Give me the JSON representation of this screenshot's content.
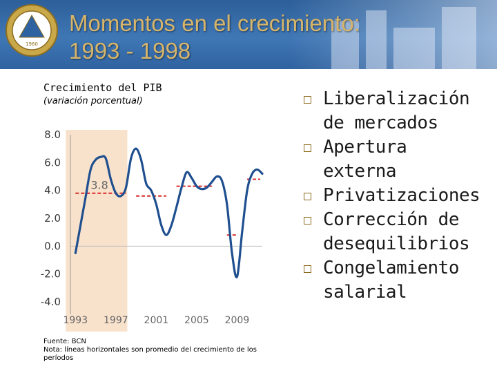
{
  "header": {
    "title_line1": "Momentos en el crecimiento:",
    "title_line2": "1993 - 1998",
    "seal_text": "1960"
  },
  "chart_title": "Crecimiento del PIB",
  "chart_subtitle": "(variación porcentual)",
  "chart_data": {
    "type": "line",
    "title": "Crecimiento del PIB",
    "subtitle": "(variación porcentual)",
    "ylim": [
      -4.0,
      8.0
    ],
    "xlim": [
      1992.5,
      2011.5
    ],
    "y_ticks": [
      "8.0",
      "6.0",
      "4.0",
      "2.0",
      "0.0",
      "-2.0",
      "-4.0"
    ],
    "y_tick_values": [
      8,
      6,
      4,
      2,
      0,
      -2,
      -4
    ],
    "x_ticks": [
      "1993",
      "1997",
      "2001",
      "2005",
      "2009"
    ],
    "x_tick_values": [
      1993,
      1997,
      2001,
      2005,
      2009
    ],
    "highlight_range": [
      1993,
      1998
    ],
    "highlight_color": "#f8e2cc",
    "series": [
      {
        "color": "#1f4f8f",
        "x": [
          1993,
          1993.5,
          1994,
          1994.5,
          1995,
          1995.5,
          1996,
          1996.5,
          1997,
          1997.5,
          1998,
          1998.5,
          1999,
          1999.5,
          2000,
          2000.5,
          2001,
          2001.5,
          2002,
          2002.5,
          2003,
          2003.5,
          2004,
          2004.5,
          2005,
          2005.5,
          2006,
          2006.5,
          2007,
          2007.5,
          2008,
          2008.5,
          2009,
          2009.5,
          2010,
          2010.5,
          2011,
          2011.5
        ],
        "values": [
          -0.5,
          1.5,
          3.5,
          5.5,
          6.2,
          6.4,
          6.3,
          4.8,
          3.8,
          3.6,
          4.2,
          6.3,
          7.0,
          6.2,
          4.5,
          4.0,
          3.0,
          1.5,
          0.8,
          1.5,
          2.8,
          4.2,
          5.3,
          4.9,
          4.3,
          4.1,
          4.2,
          4.6,
          5.0,
          4.7,
          3.0,
          -0.5,
          -2.2,
          1.0,
          4.0,
          5.2,
          5.5,
          5.2
        ]
      }
    ],
    "averages": [
      {
        "x_start": 1993,
        "x_end": 1998,
        "value": 3.8,
        "label": "3.8"
      },
      {
        "x_start": 1999,
        "x_end": 2002,
        "value": 3.6
      },
      {
        "x_start": 2003,
        "x_end": 2006.5,
        "value": 4.3
      },
      {
        "x_start": 2008,
        "x_end": 2008.9,
        "value": 0.8
      },
      {
        "x_start": 2010,
        "x_end": 2011.3,
        "value": 4.8
      }
    ],
    "average_color": "#d92a2a"
  },
  "notes": {
    "source": "Fuente: BCN",
    "note": "Nota: líneas horizontales son promedio del crecimiento de los períodos"
  },
  "bullets": [
    {
      "line1": "Liberalización",
      "line2": "de mercados"
    },
    {
      "line1": "Apertura",
      "line2": "externa"
    },
    {
      "line1": "Privatizaciones",
      "line2": ""
    },
    {
      "line1": "Corrección de",
      "line2": "desequilibrios"
    },
    {
      "line1": "Congelamiento",
      "line2": "salarial"
    }
  ]
}
